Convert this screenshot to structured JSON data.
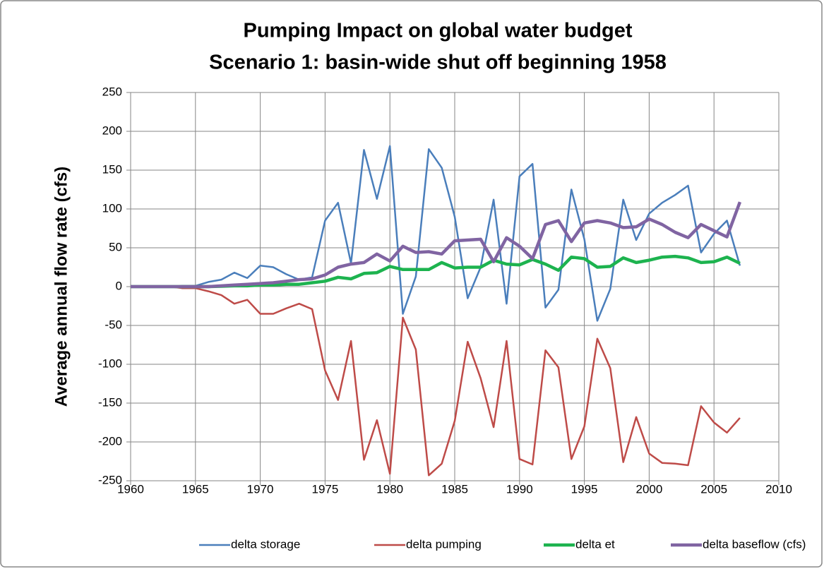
{
  "chart_data": {
    "type": "line",
    "title": "Pumping Impact on global water budget",
    "subtitle": "Scenario 1: basin-wide shut off beginning 1958",
    "y_label": "Average annual flow rate (cfs)",
    "x": [
      1960,
      1961,
      1962,
      1963,
      1964,
      1965,
      1966,
      1967,
      1968,
      1969,
      1970,
      1971,
      1972,
      1973,
      1974,
      1975,
      1976,
      1977,
      1978,
      1979,
      1980,
      1981,
      1982,
      1983,
      1984,
      1985,
      1986,
      1987,
      1988,
      1989,
      1990,
      1991,
      1992,
      1993,
      1994,
      1995,
      1996,
      1997,
      1998,
      1999,
      2000,
      2001,
      2002,
      2003,
      2004,
      2005,
      2006,
      2007
    ],
    "series": [
      {
        "name": "delta storage",
        "color": "#4a7ebb",
        "width": 2.5,
        "values": [
          0,
          0,
          0,
          0,
          1,
          1,
          6,
          9,
          18,
          11,
          27,
          25,
          16,
          9,
          12,
          85,
          108,
          30,
          176,
          113,
          181,
          -35,
          13,
          177,
          153,
          90,
          -15,
          25,
          112,
          -22,
          142,
          158,
          -27,
          -4,
          125,
          61,
          -44,
          -3,
          112,
          60,
          94,
          108,
          118,
          130,
          44,
          68,
          85,
          27
        ]
      },
      {
        "name": "delta pumping",
        "color": "#be4b48",
        "width": 2.5,
        "values": [
          0,
          0,
          0,
          0,
          -2,
          -2,
          -6,
          -11,
          -22,
          -17,
          -35,
          -35,
          -28,
          -22,
          -29,
          -108,
          -146,
          -70,
          -223,
          -172,
          -241,
          -40,
          -81,
          -243,
          -228,
          -173,
          -71,
          -118,
          -181,
          -70,
          -222,
          -229,
          -82,
          -104,
          -222,
          -180,
          -67,
          -105,
          -226,
          -168,
          -215,
          -227,
          -228,
          -230,
          -154,
          -175,
          -188,
          -169
        ]
      },
      {
        "name": "delta et",
        "color": "#1db34f",
        "width": 4.5,
        "values": [
          0,
          0,
          0,
          0,
          0,
          0,
          0,
          0.5,
          1,
          1,
          2,
          2,
          3,
          3,
          5,
          7,
          12,
          10,
          17,
          18,
          26,
          22,
          22,
          22,
          31,
          24,
          25,
          25,
          34,
          29,
          28,
          35,
          29,
          21,
          38,
          36,
          25,
          26,
          37,
          31,
          34,
          38,
          39,
          37,
          31,
          32,
          38,
          30
        ]
      },
      {
        "name": "delta baseflow (cfs)",
        "color": "#8064a2",
        "width": 4.5,
        "values": [
          0,
          0,
          0,
          0,
          0,
          0,
          0,
          1,
          2,
          3,
          4,
          5,
          7,
          9,
          10,
          15,
          25,
          29,
          31,
          42,
          33,
          52,
          44,
          45,
          42,
          59,
          60,
          61,
          32,
          63,
          52,
          36,
          80,
          85,
          58,
          82,
          85,
          82,
          76,
          77,
          87,
          80,
          70,
          63,
          80,
          72,
          64,
          109
        ]
      }
    ],
    "xlim": [
      1960,
      2010
    ],
    "xticks": [
      1960,
      1965,
      1970,
      1975,
      1980,
      1985,
      1990,
      1995,
      2000,
      2005,
      2010
    ],
    "ylim": [
      -250,
      250
    ],
    "yticks": [
      -250,
      -200,
      -150,
      -100,
      -50,
      0,
      50,
      100,
      150,
      200,
      250
    ],
    "grid": true,
    "legend": "bottom"
  }
}
